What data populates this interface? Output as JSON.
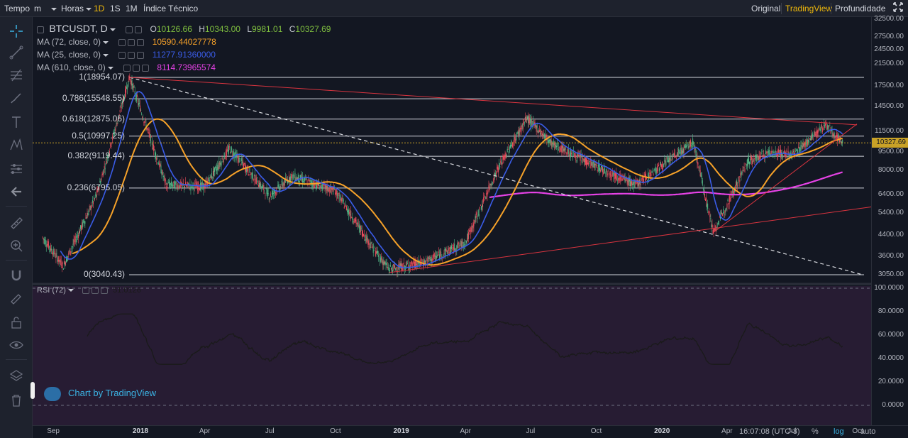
{
  "toolbar": {
    "time_label": "Tempo",
    "interval_value": "m",
    "hours_label": "Horas",
    "intervals": [
      "1D",
      "1S",
      "1M"
    ],
    "active_interval": "1D",
    "indicators_label": "Índice Técnico",
    "right_tabs": [
      "Original",
      "TradingView",
      "Profundidade"
    ],
    "active_right_tab": "TradingView"
  },
  "legend": {
    "symbol": "BTCUSDT, D",
    "ohlc": {
      "o_label": "O",
      "o_value": "10126.66",
      "h_label": "H",
      "h_value": "10343.00",
      "l_label": "L",
      "l_value": "9981.01",
      "c_label": "C",
      "c_value": "10327.69"
    },
    "mas": [
      {
        "name": "MA (72, close, 0)",
        "value": "10590.44027778",
        "color": "#f7a229"
      },
      {
        "name": "MA (25, close, 0)",
        "value": "11277.91360000",
        "color": "#3a5ce8"
      },
      {
        "name": "MA (610, close, 0)",
        "value": "8114.73965574",
        "color": "#e542e5"
      }
    ]
  },
  "fib_levels": [
    {
      "label": "1(18954.07)",
      "price": 18954.07
    },
    {
      "label": "0.786(15548.55)",
      "price": 15548.55
    },
    {
      "label": "0.618(12875.06)",
      "price": 12875.06
    },
    {
      "label": "0.5(10997.25)",
      "price": 10997.25
    },
    {
      "label": "0.382(9119.44)",
      "price": 9119.44
    },
    {
      "label": "0.236(6795.05)",
      "price": 6795.05
    },
    {
      "label": "0(3040.43)",
      "price": 3040.43
    }
  ],
  "price_scale": {
    "labels": [
      "32500.00",
      "27500.00",
      "24500.00",
      "21500.00",
      "17500.00",
      "14500.00",
      "11500.00",
      "9500.00",
      "8000.00",
      "6400.00",
      "5400.00",
      "4400.00",
      "3600.00",
      "3050.00"
    ],
    "current": "10327.69",
    "current_price": 10327.69
  },
  "rsi": {
    "name": "RSI (72)",
    "value": "51.0126",
    "scale_labels": [
      "100.0000",
      "80.0000",
      "60.0000",
      "40.0000",
      "20.0000",
      "0.0000"
    ]
  },
  "time_scale": {
    "labels": [
      "Sep",
      "2018",
      "Apr",
      "Jul",
      "Oct",
      "2019",
      "Apr",
      "Jul",
      "Oct",
      "2020",
      "Apr",
      "Jul",
      "Oct"
    ],
    "bold": [
      "2018",
      "2019",
      "2020"
    ],
    "clock": "16:07:08 (UTC-3)",
    "percent": "%",
    "log": "log",
    "auto": "auto"
  },
  "watermark": "Chart by TradingView",
  "colors": {
    "ma72": "#f7a229",
    "ma25": "#3a5ce8",
    "ma610": "#e542e5",
    "up": "#53b987",
    "down": "#eb4d5c",
    "trend": "#d9343f",
    "rsi_bg": "#271c33"
  },
  "chart_data": {
    "type": "line",
    "title": "",
    "x": [
      "2017-08-17",
      "2017-09-15",
      "2017-11-01",
      "2017-12-17",
      "2018-02-06",
      "2018-04-01",
      "2018-05-06",
      "2018-07-01",
      "2018-08-01",
      "2018-10-01",
      "2018-11-25",
      "2018-12-15",
      "2019-02-01",
      "2019-04-01",
      "2019-05-15",
      "2019-06-26",
      "2019-08-01",
      "2019-10-01",
      "2019-11-25",
      "2020-02-14",
      "2020-03-13",
      "2020-04-30",
      "2020-06-01",
      "2020-07-01",
      "2020-08-17",
      "2020-09-10"
    ],
    "series": [
      {
        "values": [
          4300,
          3300,
          6400,
          19000,
          7000,
          6900,
          9800,
          6300,
          7600,
          6600,
          3800,
          3200,
          3400,
          4100,
          8000,
          13000,
          10200,
          8300,
          7000,
          10400,
          4500,
          8700,
          9500,
          9200,
          12200,
          10327.69
        ]
      }
    ],
    "ylabel": "",
    "ylim": [
      3050,
      32500
    ],
    "log_scale": true,
    "grid": false
  }
}
